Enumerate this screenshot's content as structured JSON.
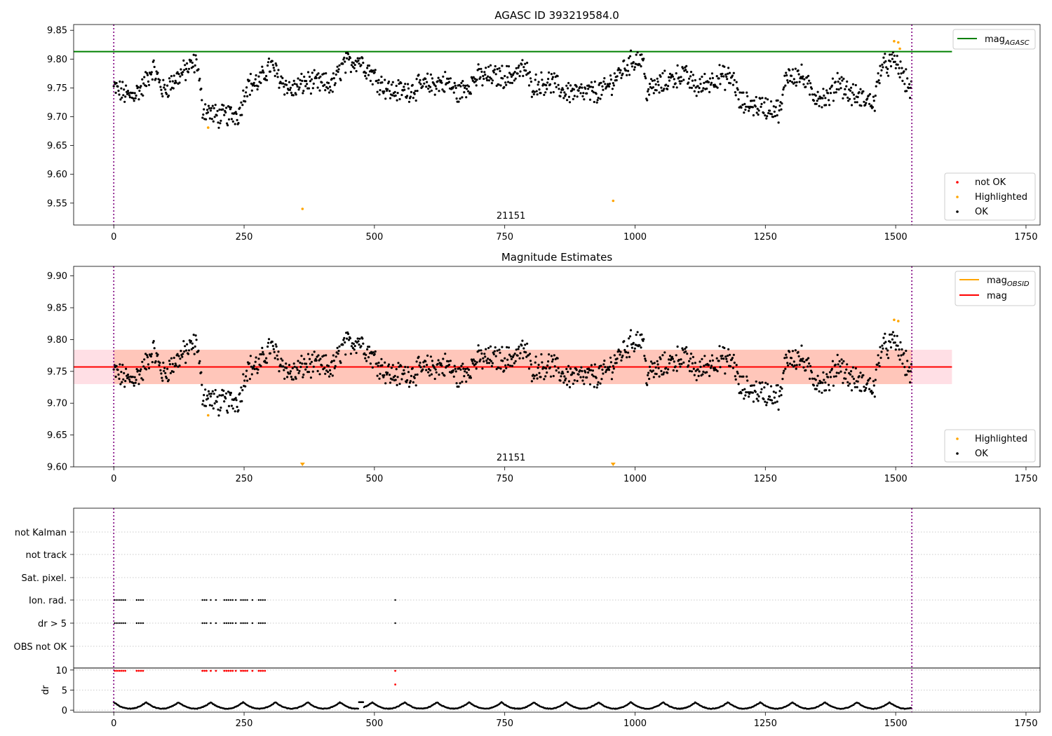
{
  "chart_data": [
    {
      "type": "scatter",
      "title": "AGASC ID 393219584.0",
      "xlim": [
        -77,
        1777
      ],
      "ylim": [
        9.512,
        9.86
      ],
      "xticks": [
        0,
        250,
        500,
        750,
        1000,
        1250,
        1500,
        1750
      ],
      "yticks": [
        9.55,
        9.6,
        9.65,
        9.7,
        9.75,
        9.8,
        9.85
      ],
      "ytick_labels": [
        "9.55",
        "9.60",
        "9.65",
        "9.70",
        "9.75",
        "9.80",
        "9.85"
      ],
      "obsid_label": "21151",
      "obsid_label_x": 762,
      "vlines_x": [
        0,
        1531
      ],
      "hline": {
        "y": 9.813,
        "x_end": 1608,
        "color": "#008000"
      },
      "legend_top": {
        "label": "mag",
        "sub": "AGASC",
        "color": "#008000"
      },
      "legend_bottom": [
        {
          "label": "not OK",
          "color": "#ff0000"
        },
        {
          "label": "Highlighted",
          "color": "#ffa500"
        },
        {
          "label": "OK",
          "color": "#000000"
        }
      ],
      "highlighted_points": [
        {
          "x": 181,
          "y": 9.681
        },
        {
          "x": 362,
          "y": 9.54
        },
        {
          "x": 958,
          "y": 9.554
        },
        {
          "x": 1497,
          "y": 9.831
        },
        {
          "x": 1505,
          "y": 9.829
        },
        {
          "x": 1508,
          "y": 9.818
        }
      ]
    },
    {
      "type": "scatter",
      "title": "Magnitude Estimates",
      "xlim": [
        -77,
        1777
      ],
      "ylim": [
        9.6,
        9.915
      ],
      "xticks": [
        0,
        250,
        500,
        750,
        1000,
        1250,
        1500,
        1750
      ],
      "yticks": [
        9.6,
        9.65,
        9.7,
        9.75,
        9.8,
        9.85,
        9.9
      ],
      "ytick_labels": [
        "9.60",
        "9.65",
        "9.70",
        "9.75",
        "9.80",
        "9.85",
        "9.90"
      ],
      "obsid_label": "21151",
      "obsid_label_x": 762,
      "vlines_x": [
        0,
        1531
      ],
      "mag_line": {
        "y": 9.757,
        "x_start": -77,
        "x_end": 1608,
        "color": "#ff0000"
      },
      "mag_band": {
        "y0": 9.73,
        "y1": 9.784,
        "color": "#ffc0cb"
      },
      "obsid_band": {
        "y0": 9.73,
        "y1": 9.784,
        "color": "#ffa07a"
      },
      "legend_top": [
        {
          "label": "mag",
          "sub": "OBSID",
          "color": "#ffa500"
        },
        {
          "label": "mag",
          "sub": "",
          "color": "#ff0000"
        }
      ],
      "legend_bottom": [
        {
          "label": "Highlighted",
          "color": "#ffa500"
        },
        {
          "label": "OK",
          "color": "#000000"
        }
      ],
      "highlighted_points": [
        {
          "x": 181,
          "y": 9.681
        },
        {
          "x": 1497,
          "y": 9.831
        },
        {
          "x": 1505,
          "y": 9.829
        }
      ],
      "offscale_markers_x": [
        362,
        958
      ]
    },
    {
      "type": "scatter",
      "title": "",
      "xlim": [
        -77,
        1777
      ],
      "xticks": [
        0,
        250,
        500,
        750,
        1000,
        1250,
        1500,
        1750
      ],
      "vlines_x": [
        0,
        1531
      ],
      "flag_rows": [
        "not Kalman",
        "not track",
        "Sat. pixel.",
        "Ion. rad.",
        "dr > 5",
        "OBS not OK"
      ],
      "flag_groups": [
        [
          2,
          6,
          10,
          14,
          18,
          22
        ],
        [
          44,
          48,
          52,
          56
        ],
        [
          170,
          174,
          178,
          186
        ],
        [
          196
        ],
        [
          212,
          216,
          220,
          224,
          228,
          234,
          244,
          248,
          252,
          256
        ],
        [
          266
        ],
        [
          278,
          282,
          286,
          290
        ]
      ],
      "flag_single_x": 540,
      "dr_axis": {
        "ylabel": "dr",
        "ylim": [
          -0.5,
          10.5
        ],
        "yticks": [
          0,
          5,
          10
        ],
        "ytick_labels": [
          "0",
          "5",
          "10"
        ]
      },
      "dr_high_points_y": 9.8,
      "dr_extra_point": {
        "x": 540,
        "y": 6.4
      }
    }
  ]
}
